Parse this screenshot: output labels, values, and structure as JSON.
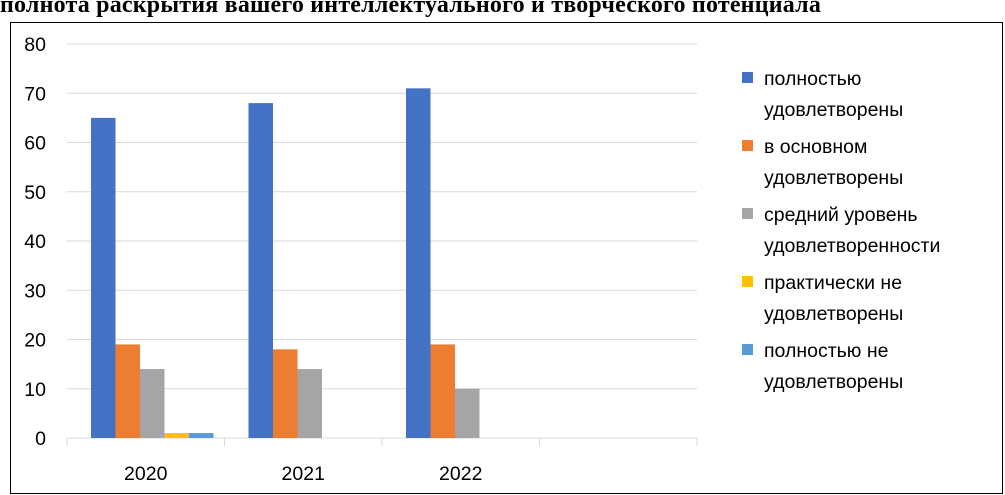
{
  "title": "полнота  раскрытия вашего  интеллектуального и творческого потенциала",
  "colors": {
    "grid": "#d9d9d9",
    "axis": "#d9d9d9",
    "text": "#000000"
  },
  "chart_data": {
    "type": "bar",
    "categories": [
      "2020",
      "2021",
      "2022",
      ""
    ],
    "ylim": [
      0,
      80
    ],
    "yticks": [
      0,
      10,
      20,
      30,
      40,
      50,
      60,
      70,
      80
    ],
    "xlabel": "",
    "ylabel": "",
    "grid": true,
    "legend_position": "right",
    "series": [
      {
        "name": "полностью\nудовлетворены",
        "color": "#4472c4",
        "values": [
          65,
          68,
          71,
          null
        ]
      },
      {
        "name": "в основном\nудовлетворены",
        "color": "#ed7d31",
        "values": [
          19,
          18,
          19,
          null
        ]
      },
      {
        "name": "средний уровень\nудовлетворенности",
        "color": "#a5a5a5",
        "values": [
          14,
          14,
          10,
          null
        ]
      },
      {
        "name": "практически не\nудовлетворены",
        "color": "#ffc000",
        "values": [
          1,
          0,
          0,
          null
        ]
      },
      {
        "name": "полностью не\nудовлетворены",
        "color": "#5b9bd5",
        "values": [
          1,
          0,
          0,
          null
        ]
      }
    ]
  }
}
